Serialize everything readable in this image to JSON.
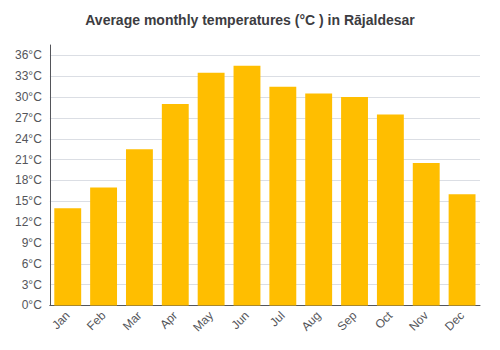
{
  "chart_data": {
    "type": "bar",
    "title": "Average monthly temperatures (°C ) in Rājaldesar",
    "categories": [
      "Jan",
      "Feb",
      "Mar",
      "Apr",
      "May",
      "Jun",
      "Jul",
      "Aug",
      "Sep",
      "Oct",
      "Nov",
      "Dec"
    ],
    "values": [
      14.0,
      17.0,
      22.5,
      29.0,
      33.5,
      34.5,
      31.5,
      30.5,
      30.0,
      27.5,
      20.5,
      16.0
    ],
    "color": "#FFBE00",
    "ylim": [
      0,
      37.5
    ],
    "yticks": [
      {
        "value": 0,
        "label": "0°C"
      },
      {
        "value": 3,
        "label": "3°C"
      },
      {
        "value": 6,
        "label": "6°C"
      },
      {
        "value": 9,
        "label": "9°C"
      },
      {
        "value": 12,
        "label": "12°C"
      },
      {
        "value": 15,
        "label": "15°C"
      },
      {
        "value": 18,
        "label": "18°C"
      },
      {
        "value": 21,
        "label": "21°C"
      },
      {
        "value": 24,
        "label": "24°C"
      },
      {
        "value": 27,
        "label": "27°C"
      },
      {
        "value": 30,
        "label": "30°C"
      },
      {
        "value": 33,
        "label": "33°C"
      },
      {
        "value": 36,
        "label": "36°C"
      }
    ],
    "grid": true
  }
}
